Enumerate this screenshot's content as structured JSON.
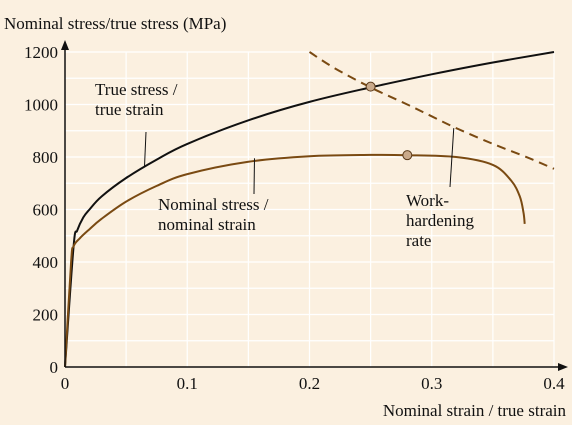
{
  "chart_data": {
    "type": "line",
    "title": "",
    "ylabel": "Nominal stress/true stress (MPa)",
    "xlabel": "Nominal strain / true strain",
    "xlim": [
      0,
      0.4
    ],
    "ylim": [
      0,
      1200
    ],
    "grid": true,
    "colors": {
      "background": "#fbf0e0",
      "grid": "#ffffff",
      "true_curve": "#111111",
      "nominal_curve": "#7a4a12",
      "work_hardening": "#7a4a12",
      "marker": "#c9a98a"
    },
    "x_ticks": [
      {
        "value": 0,
        "label": "0"
      },
      {
        "value": 0.1,
        "label": "0.1"
      },
      {
        "value": 0.2,
        "label": "0.2"
      },
      {
        "value": 0.3,
        "label": "0.3"
      },
      {
        "value": 0.4,
        "label": "0.4"
      }
    ],
    "y_ticks": [
      {
        "value": 0,
        "label": "0"
      },
      {
        "value": 200,
        "label": "200"
      },
      {
        "value": 400,
        "label": "400"
      },
      {
        "value": 600,
        "label": "600"
      },
      {
        "value": 800,
        "label": "800"
      },
      {
        "value": 1000,
        "label": "1000"
      },
      {
        "value": 1200,
        "label": "1200"
      }
    ],
    "series": [
      {
        "key": "true",
        "x": [
          0,
          0.007,
          0.01,
          0.015,
          0.02,
          0.03,
          0.05,
          0.075,
          0.1,
          0.15,
          0.2,
          0.25,
          0.3,
          0.35,
          0.4
        ],
        "y": [
          0,
          460,
          520,
          570,
          600,
          650,
          720,
          790,
          850,
          940,
          1010,
          1065,
          1115,
          1160,
          1200
        ]
      },
      {
        "key": "nominal",
        "x": [
          0,
          0.005,
          0.007,
          0.012,
          0.02,
          0.03,
          0.05,
          0.075,
          0.1,
          0.15,
          0.2,
          0.25,
          0.28,
          0.32,
          0.35,
          0.365,
          0.372,
          0.375,
          0.376
        ],
        "y": [
          0,
          400,
          460,
          490,
          525,
          565,
          630,
          690,
          735,
          782,
          803,
          808,
          807,
          800,
          770,
          710,
          650,
          590,
          545
        ]
      },
      {
        "key": "work_hardening",
        "dashed": true,
        "x": [
          0.2,
          0.22,
          0.25,
          0.28,
          0.3,
          0.32,
          0.35,
          0.38,
          0.4
        ],
        "y": [
          1200,
          1140,
          1065,
          1000,
          955,
          910,
          850,
          795,
          755
        ]
      }
    ],
    "points": [
      {
        "x": 0.25,
        "y": 1068
      },
      {
        "x": 0.28,
        "y": 807
      }
    ],
    "annotations": [
      {
        "lines": [
          "True stress /",
          "true strain"
        ],
        "leader": [
          0.065,
          760
        ]
      },
      {
        "lines": [
          "Nominal stress /",
          "nominal strain"
        ],
        "leader": [
          0.155,
          795
        ]
      },
      {
        "lines": [
          "Work-",
          "hardening",
          "rate"
        ],
        "leader": [
          0.318,
          910
        ]
      }
    ]
  }
}
